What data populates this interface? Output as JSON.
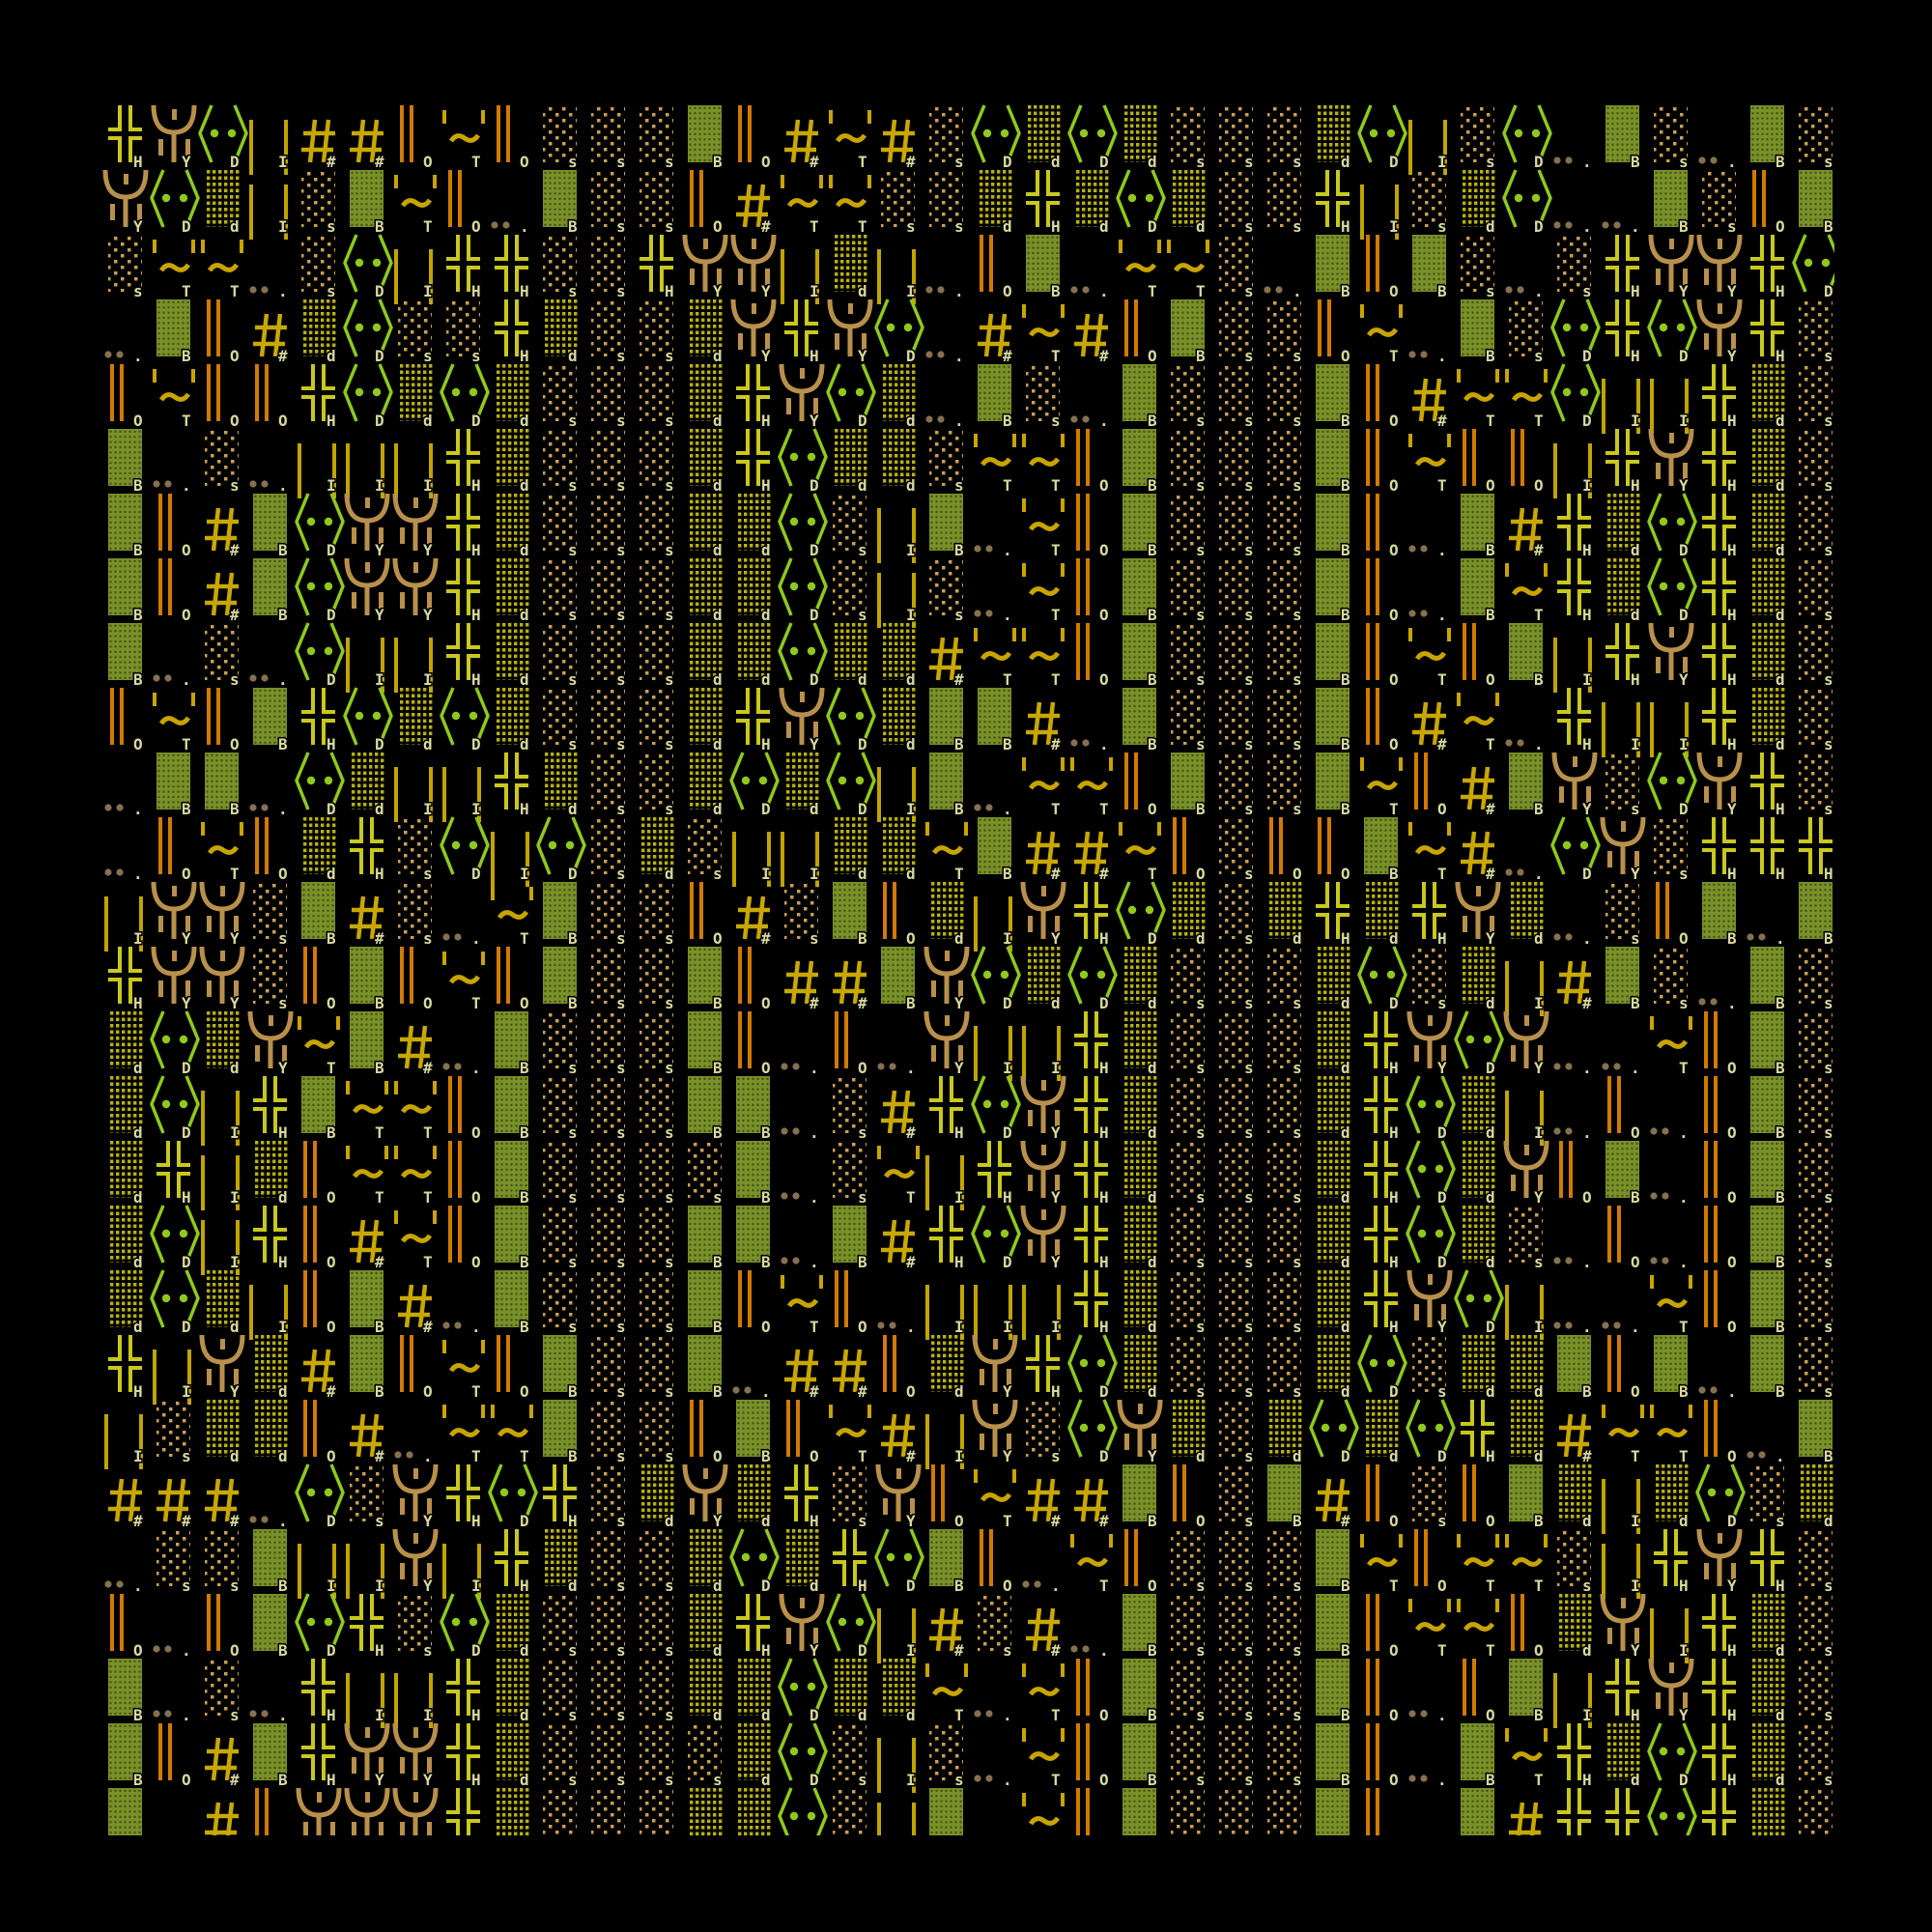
{
  "background": "#000000",
  "legend": {
    "H": {
      "icon": "double-cross-icon",
      "color": "#c8c81e"
    },
    "Y": {
      "icon": "trident-icon",
      "color": "#b8904c"
    },
    "D": {
      "icon": "angle-bracket-eyes-icon",
      "color": "#90c81e"
    },
    "I": {
      "icon": "twin-bars-icon",
      "color": "#c0a400"
    },
    "#": {
      "icon": "hash-icon",
      "color": "#c8a800"
    },
    "O": {
      "icon": "double-bar-icon",
      "color": "#d07a00"
    },
    "T": {
      "icon": "quote-tilde-icon",
      "color": "#c8a400"
    },
    "s": {
      "icon": "sparse-dots-icon",
      "color": "#c8a050"
    },
    "d": {
      "icon": "dense-dots-icon",
      "color": "#b8b010"
    },
    "B": {
      "icon": "solid-block-icon",
      "color": "#7a9028"
    },
    ".": {
      "icon": "two-dots-icon",
      "color": "#857050"
    },
    "_": {
      "icon": "empty-cell",
      "color": "#000000"
    }
  },
  "grid": {
    "rows": [
      "HYDI##OTOsssBO#T#sDdDdsssdDIsD.Bs.Bs",
      "YDdIsBTO.BssO#TTssdHdDdssHIsdD..BsOB",
      "sTT.sDIHHssHYYIdI.OB.TTs.BOBs.sHYYHD",
      ".BO#dDssHdssdYHYD.#T#OBssOT.BsDHDYHs",
      "OTOOHDdDdsssdHYDd.Bs.BsssBO#TTDIIHds",
      "B.s.IIIHdsssdHDddsTTOBsssBOTOOIHYHds",
      "BO#BDYYHdsssddDsIB.TOBsssBO.B#HdDHds",
      "BO#BDYYHdsssddDsIs.TOBsssBO.BTHdDHds",
      "B.s.DIIHdsssddDdd#TTOBsssBOTOBIHYHds",
      "OTOBHDdDdsssdHYDdBB#.BsssBO#T.HIIHds",
      ".BB.DdIIHdssdDdDIB.TTOBssBTO#BYsDYHs",
      ".OTOdHsDIDsdsIIddTB##TOsOOBT#.DYsHHH",
      "IYYsB#s.TBssO#sBOdIYHDdsdHdHYd.sOB.B",
      "HYYsOBOTOBssBO##BYDdDdsssdDsdI#Bs.Bs",
      "dDdYTB#.BsssBO.O.YIIHdsssdHYDY..TOBs",
      "dDIHBTTOBsssBB.s#HDYHdsssdHDdI.O.OBs",
      "dHIdOTTOBssssB.sTIHYHdsssdHDdYOB.OBs",
      "dDIHO#TOBsssBB.B#HDYHdsssdHDds.O.OBs",
      "dDdIOB#.BsssBOTO.IIIHdsssdHYDI..TOBs",
      "HIYd#BOTOBssB.##OdYHDdsssdDsddBOB.Bs",
      "IsddO#.TTBssOBOT#IYsDYdsdDdDHd#TTO.B",
      "###.DsYHDHsdYdHsYOT##BOsB#OsOBdIdDsd",
      ".ssBIIYIHdssdDdHDBO.TOsssBTOTTsIHYHs",
      "O.OBDHsDdsssdHYDI#s#.BsssBOTTOdYIHds",
      "B.s.HIIHdsssddDddT.TOBsssBO.OBIHYHds",
      "BO#BHYYHdssssdDsIs.TOBsssBO.BTHdDHds",
      "B_#OYYYHdsssddDsIB_TOBsssBO_B#HHDHds"
    ]
  }
}
